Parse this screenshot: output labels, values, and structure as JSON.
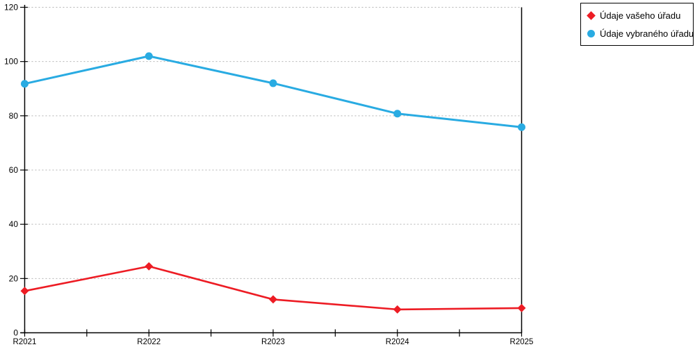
{
  "chart_data": {
    "type": "line",
    "categories": [
      "R2021",
      "R2022",
      "R2023",
      "R2024",
      "R2025"
    ],
    "series": [
      {
        "name": "Údaje vašeho úřadu",
        "marker": "diamond",
        "color": "#ED1C24",
        "values": [
          15.4,
          24.5,
          12.3,
          8.6,
          9.1
        ]
      },
      {
        "name": "Údaje vybraného úřadu",
        "marker": "circle",
        "color": "#29ABE2",
        "values": [
          91.8,
          102,
          92,
          80.8,
          75.8
        ]
      }
    ],
    "title": "",
    "xlabel": "",
    "ylabel": "",
    "ylim": [
      0,
      120
    ],
    "yticks": [
      0,
      20,
      40,
      60,
      80,
      100,
      120
    ],
    "grid": "horizontal-dotted",
    "legend_position": "top-right"
  }
}
